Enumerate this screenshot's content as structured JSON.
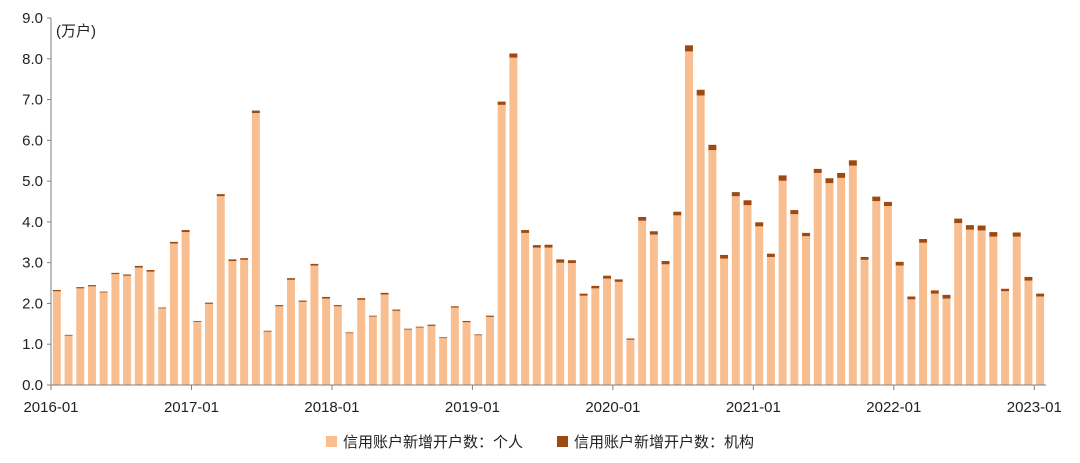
{
  "chart_data": {
    "type": "bar",
    "stacked": true,
    "unit_label": "(万户)",
    "ylim": [
      0,
      9
    ],
    "yticks": [
      "0.0",
      "1.0",
      "2.0",
      "3.0",
      "4.0",
      "5.0",
      "6.0",
      "7.0",
      "8.0",
      "9.0"
    ],
    "xtick_labels": [
      "2016-01",
      "2017-01",
      "2018-01",
      "2019-01",
      "2020-01",
      "2021-01",
      "2022-01",
      "2023-01"
    ],
    "grid": false,
    "legend_position": "bottom",
    "categories": [
      "2016-01",
      "2016-02",
      "2016-03",
      "2016-04",
      "2016-05",
      "2016-06",
      "2016-07",
      "2016-08",
      "2016-09",
      "2016-10",
      "2016-11",
      "2016-12",
      "2017-01",
      "2017-02",
      "2017-03",
      "2017-04",
      "2017-05",
      "2017-06",
      "2017-07",
      "2017-08",
      "2017-09",
      "2017-10",
      "2017-11",
      "2017-12",
      "2018-01",
      "2018-02",
      "2018-03",
      "2018-04",
      "2018-05",
      "2018-06",
      "2018-07",
      "2018-08",
      "2018-09",
      "2018-10",
      "2018-11",
      "2018-12",
      "2019-01",
      "2019-02",
      "2019-03",
      "2019-04",
      "2019-05",
      "2019-06",
      "2019-07",
      "2019-08",
      "2019-09",
      "2019-10",
      "2019-11",
      "2019-12",
      "2020-01",
      "2020-02",
      "2020-03",
      "2020-04",
      "2020-05",
      "2020-06",
      "2020-07",
      "2020-08",
      "2020-09",
      "2020-10",
      "2020-11",
      "2020-12",
      "2021-01",
      "2021-02",
      "2021-03",
      "2021-04",
      "2021-05",
      "2021-06",
      "2021-07",
      "2021-08",
      "2021-09",
      "2021-10",
      "2021-11",
      "2021-12",
      "2022-01",
      "2022-02",
      "2022-03",
      "2022-04",
      "2022-05",
      "2022-06",
      "2022-07",
      "2022-08",
      "2022-09",
      "2022-10",
      "2022-11",
      "2022-12",
      "2023-01"
    ],
    "series": [
      {
        "name": "信用账户新增开户数：个人",
        "color": "#F9BE8F",
        "values": [
          2.3,
          1.21,
          2.37,
          2.42,
          2.27,
          2.72,
          2.68,
          2.88,
          2.78,
          1.88,
          3.47,
          3.75,
          1.55,
          1.99,
          4.63,
          3.04,
          3.07,
          6.67,
          1.31,
          1.93,
          2.58,
          2.04,
          2.93,
          2.12,
          1.93,
          1.27,
          2.09,
          1.68,
          2.22,
          1.82,
          1.36,
          1.41,
          1.45,
          1.15,
          1.9,
          1.54,
          1.22,
          1.67,
          6.87,
          8.03,
          3.73,
          3.37,
          3.37,
          3.0,
          2.99,
          2.19,
          2.37,
          2.61,
          2.53,
          1.11,
          4.03,
          3.69,
          2.96,
          4.16,
          8.18,
          7.1,
          5.76,
          3.1,
          4.63,
          4.41,
          3.89,
          3.14,
          5.01,
          4.19,
          3.65,
          5.2,
          4.95,
          5.08,
          5.38,
          3.07,
          4.51,
          4.39,
          2.93,
          2.1,
          3.49,
          2.24,
          2.12,
          3.97,
          3.81,
          3.79,
          3.64,
          2.3,
          3.64,
          2.56,
          2.17
        ]
      },
      {
        "name": "信用账户新增开户数：机构",
        "color": "#9C4A0F",
        "values": [
          0.03,
          0.02,
          0.03,
          0.03,
          0.02,
          0.03,
          0.03,
          0.04,
          0.04,
          0.02,
          0.04,
          0.05,
          0.02,
          0.03,
          0.05,
          0.04,
          0.04,
          0.06,
          0.02,
          0.03,
          0.04,
          0.03,
          0.04,
          0.04,
          0.03,
          0.02,
          0.04,
          0.02,
          0.04,
          0.03,
          0.02,
          0.02,
          0.03,
          0.02,
          0.03,
          0.03,
          0.02,
          0.03,
          0.08,
          0.1,
          0.07,
          0.06,
          0.07,
          0.08,
          0.07,
          0.05,
          0.06,
          0.07,
          0.06,
          0.03,
          0.09,
          0.08,
          0.08,
          0.09,
          0.15,
          0.14,
          0.13,
          0.09,
          0.1,
          0.12,
          0.1,
          0.08,
          0.13,
          0.1,
          0.08,
          0.1,
          0.12,
          0.12,
          0.13,
          0.07,
          0.11,
          0.1,
          0.09,
          0.07,
          0.09,
          0.08,
          0.09,
          0.11,
          0.11,
          0.12,
          0.11,
          0.06,
          0.1,
          0.09,
          0.07
        ]
      }
    ]
  }
}
